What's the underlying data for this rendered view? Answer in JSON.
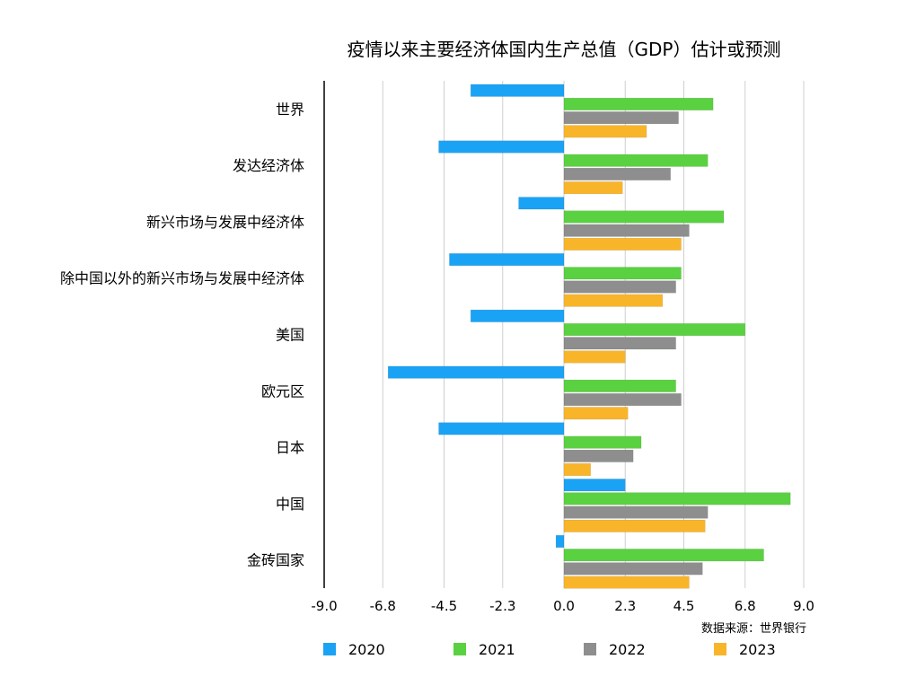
{
  "chart_data": {
    "type": "bar",
    "orientation": "horizontal",
    "title": "疫情以来主要经济体国内生产总值（GDP）估计或预测",
    "source_note": "数据来源：世界银行",
    "categories": [
      "世界",
      "发达经济体",
      "新兴市场与发展中经济体",
      "除中国以外的新兴市场与发展中经济体",
      "美国",
      "欧元区",
      "日本",
      "中国",
      "金砖国家"
    ],
    "series": [
      {
        "name": "2020",
        "color": "#1aa3f5",
        "values": [
          -3.5,
          -4.7,
          -1.7,
          -4.3,
          -3.5,
          -6.6,
          -4.7,
          2.3,
          -0.3
        ]
      },
      {
        "name": "2021",
        "color": "#5ad140",
        "values": [
          5.6,
          5.4,
          6.0,
          4.4,
          6.8,
          4.2,
          2.9,
          8.5,
          7.5
        ]
      },
      {
        "name": "2022",
        "color": "#8e8e8e",
        "values": [
          4.3,
          4.0,
          4.7,
          4.2,
          4.2,
          4.4,
          2.6,
          5.4,
          5.2
        ]
      },
      {
        "name": "2023",
        "color": "#f9b52a",
        "values": [
          3.1,
          2.2,
          4.4,
          3.7,
          2.3,
          2.4,
          1.0,
          5.3,
          4.7
        ]
      }
    ],
    "xticks": [
      "-9.0",
      "-6.8",
      "-4.5",
      "-2.3",
      "0.0",
      "2.3",
      "4.5",
      "6.8",
      "9.0"
    ],
    "xlim": [
      -9.0,
      9.0
    ],
    "grid": true,
    "legend_position": "bottom"
  }
}
